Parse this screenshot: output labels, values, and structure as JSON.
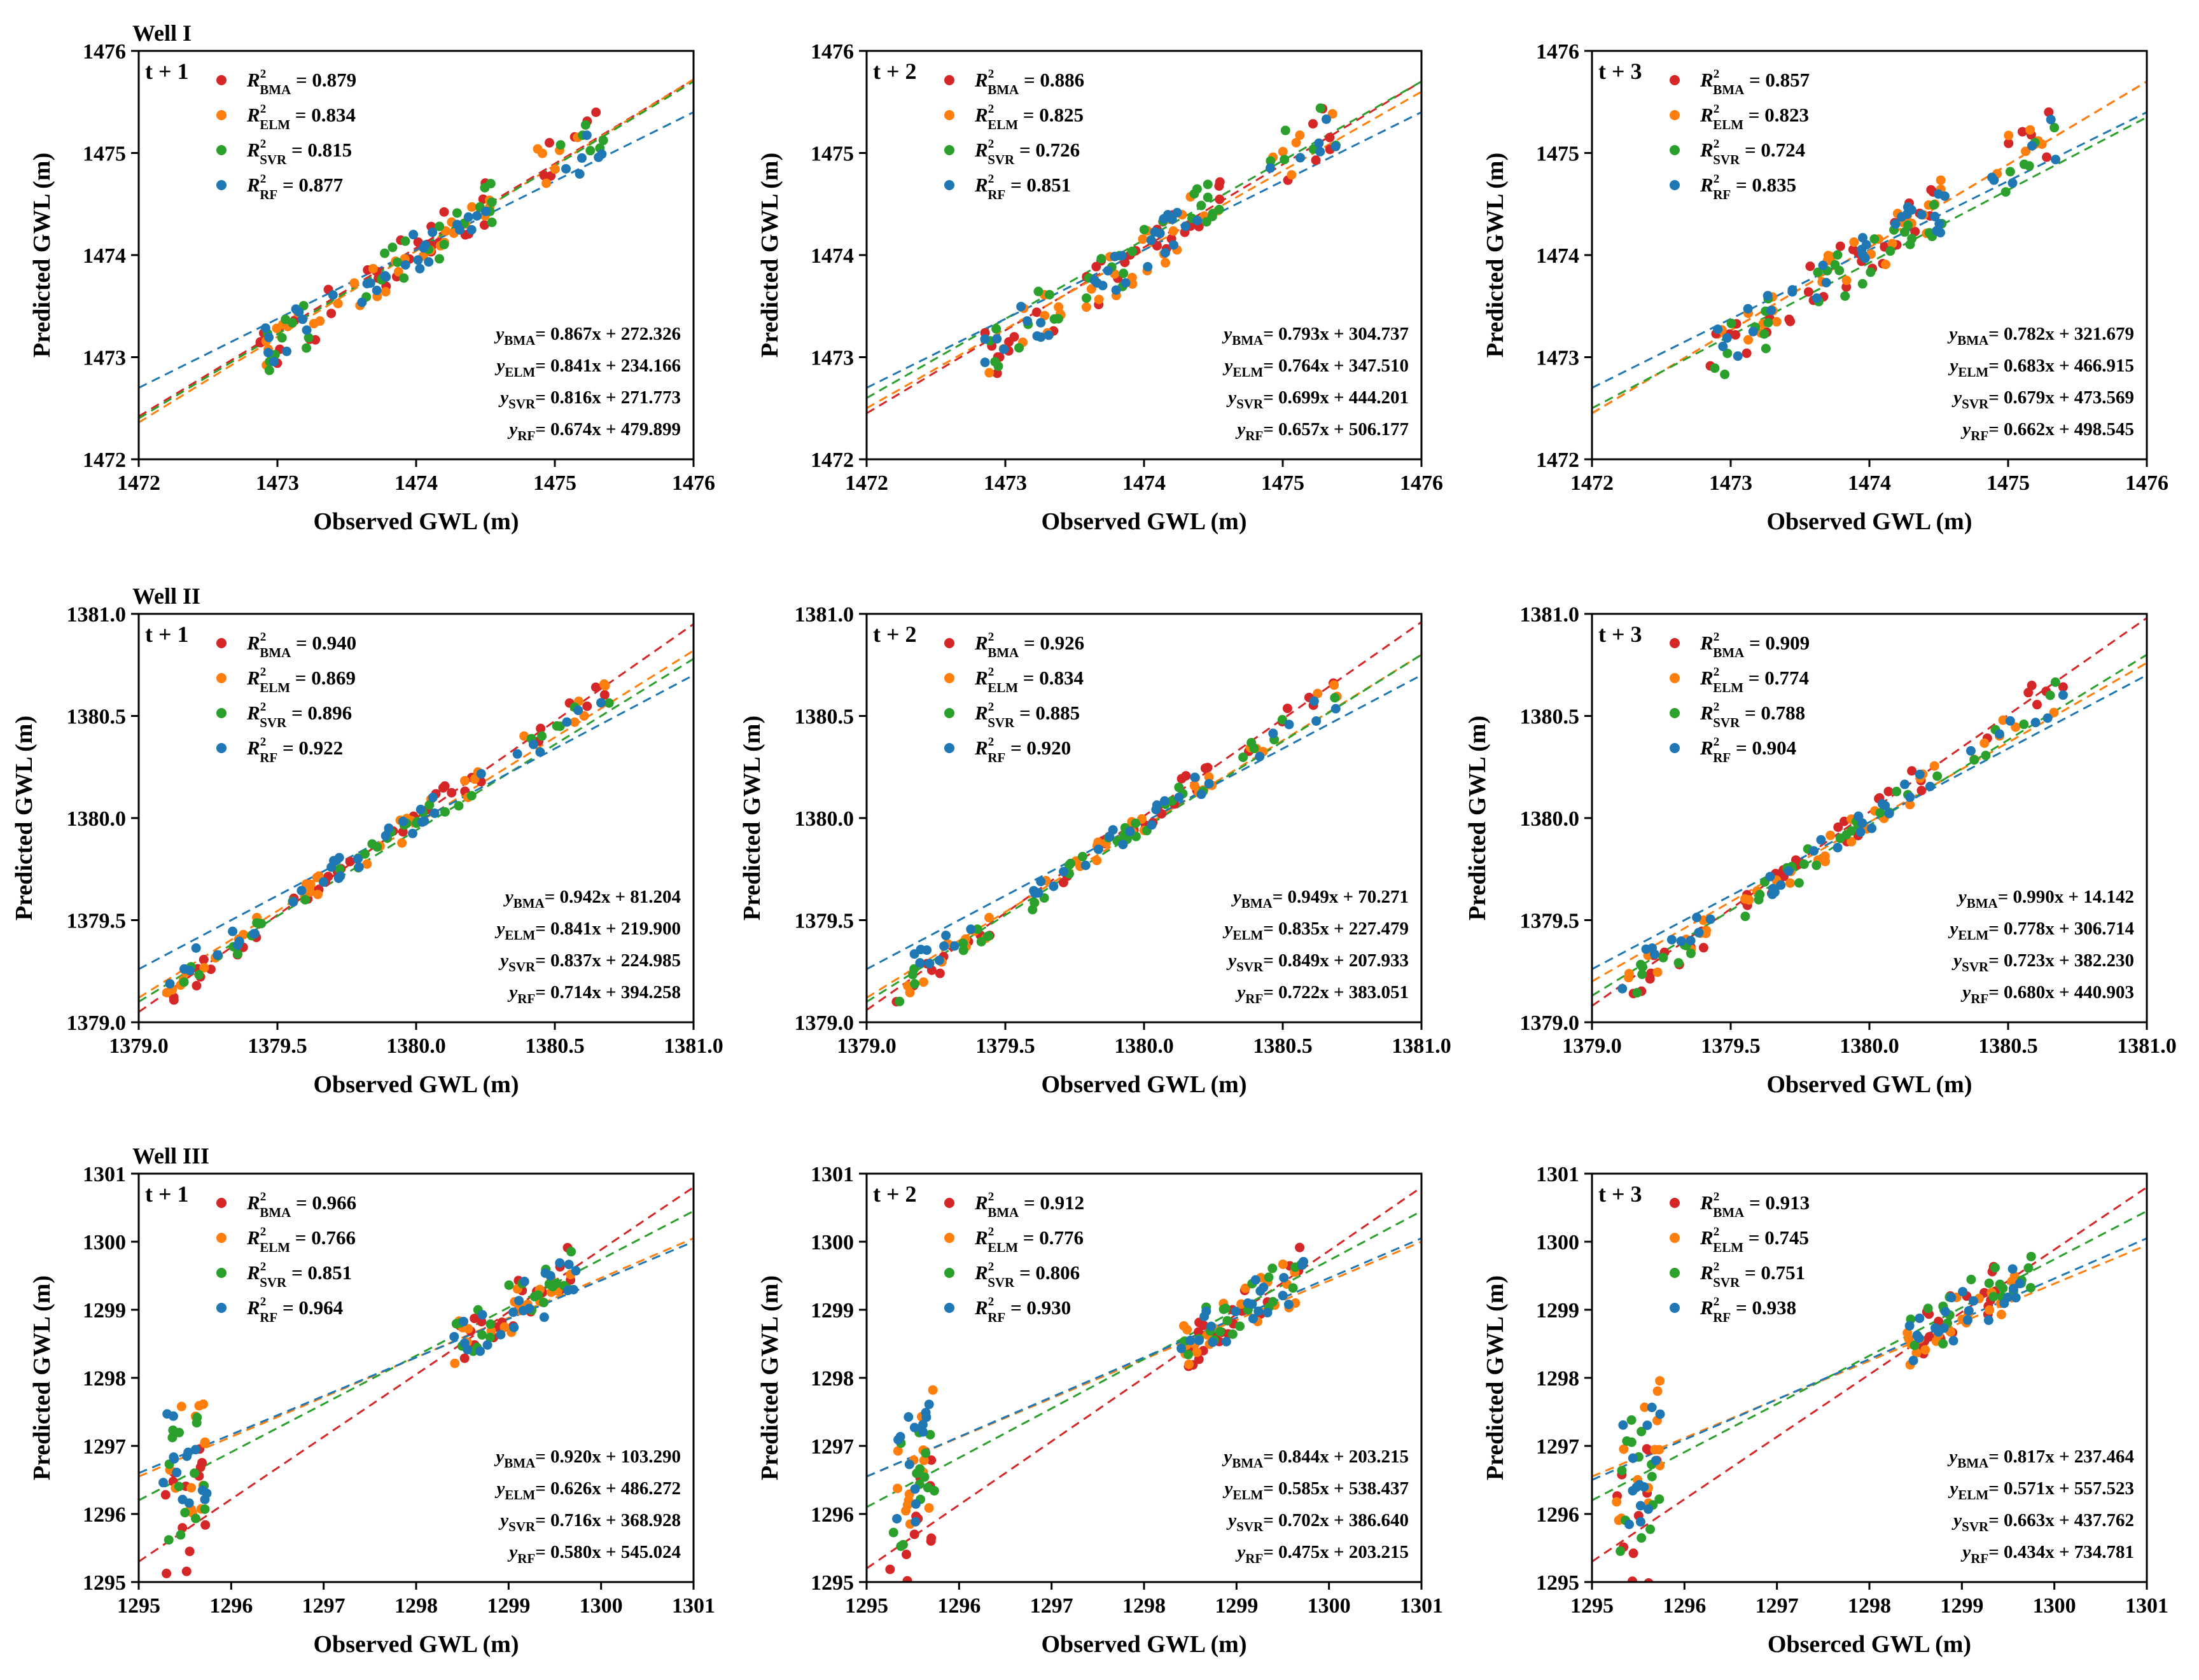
{
  "figure": {
    "ylabel": "Predicted GWL (m)",
    "models": [
      {
        "key": "BMA",
        "name": "BMA",
        "color": "#d62728"
      },
      {
        "key": "ELM",
        "name": "ELM",
        "color": "#ff7f0e"
      },
      {
        "key": "SVR",
        "name": "SVR",
        "color": "#2ca02c"
      },
      {
        "key": "RF",
        "name": "RF",
        "color": "#1f77b4"
      }
    ]
  },
  "chart_data": [
    {
      "type": "scatter",
      "well": "Well I",
      "title": "t + 1",
      "xlabel": "Observed GWL (m)",
      "ylabel": "Predicted GWL (m)",
      "xlim": [
        1472,
        1476
      ],
      "ylim": [
        1472,
        1476
      ],
      "xticks": [
        "1472",
        "1473",
        "1474",
        "1475",
        "1476"
      ],
      "yticks": [
        "1472",
        "1473",
        "1474",
        "1475",
        "1476"
      ],
      "r2": {
        "BMA": "0.879",
        "ELM": "0.834",
        "SVR": "0.815",
        "RF": "0.877"
      },
      "fits": {
        "BMA": {
          "slope": 0.867,
          "intercept": 272.326
        },
        "ELM": {
          "slope": 0.841,
          "intercept": 234.166
        },
        "SVR": {
          "slope": 0.816,
          "intercept": 271.773
        },
        "RF": {
          "slope": 0.674,
          "intercept": 479.899
        }
      },
      "fit_lines": {
        "BMA": [
          1472.42,
          1475.72
        ],
        "ELM": [
          1472.36,
          1475.72
        ],
        "SVR": [
          1472.4,
          1475.7
        ],
        "RF": [
          1472.7,
          1475.4
        ]
      },
      "equations": {
        "BMA": "= 0.867x + 272.326",
        "ELM": "= 0.841x + 234.166",
        "SVR": "= 0.816x + 271.773",
        "RF": "= 0.674x + 479.899"
      },
      "cluster": {
        "ranges": [
          [
            1472.85,
            1473.45
          ],
          [
            1473.55,
            1474.55
          ],
          [
            1474.85,
            1475.4
          ]
        ],
        "scatter": 0.22
      }
    },
    {
      "type": "scatter",
      "well": "",
      "title": "t + 2",
      "xlabel": "Observed GWL (m)",
      "ylabel": "Predicted GWL (m)",
      "xlim": [
        1472,
        1476
      ],
      "ylim": [
        1472,
        1476
      ],
      "xticks": [
        "1472",
        "1473",
        "1474",
        "1475",
        "1476"
      ],
      "yticks": [
        "1472",
        "1473",
        "1474",
        "1475",
        "1476"
      ],
      "r2": {
        "BMA": "0.886",
        "ELM": "0.825",
        "SVR": "0.726",
        "RF": "0.851"
      },
      "fits": {
        "BMA": {
          "slope": 0.793,
          "intercept": 304.737
        },
        "ELM": {
          "slope": 0.764,
          "intercept": 347.51
        },
        "SVR": {
          "slope": 0.699,
          "intercept": 444.201
        },
        "RF": {
          "slope": 0.657,
          "intercept": 506.177
        }
      },
      "fit_lines": {
        "BMA": [
          1472.45,
          1475.7
        ],
        "ELM": [
          1472.5,
          1475.6
        ],
        "SVR": [
          1472.6,
          1475.7
        ],
        "RF": [
          1472.7,
          1475.4
        ]
      },
      "equations": {
        "BMA": "= 0.793x + 304.737",
        "ELM": "= 0.764x + 347.510",
        "SVR": "= 0.699x + 444.201",
        "RF": "= 0.657x + 506.177"
      },
      "cluster": {
        "ranges": [
          [
            1472.85,
            1473.45
          ],
          [
            1473.55,
            1474.55
          ],
          [
            1474.85,
            1475.4
          ]
        ],
        "scatter": 0.25
      }
    },
    {
      "type": "scatter",
      "well": "",
      "title": "t + 3",
      "xlabel": "Observed GWL (m)",
      "ylabel": "Predicted GWL (m)",
      "xlim": [
        1472,
        1476
      ],
      "ylim": [
        1472,
        1476
      ],
      "xticks": [
        "1472",
        "1473",
        "1474",
        "1475",
        "1476"
      ],
      "yticks": [
        "1472",
        "1473",
        "1474",
        "1475",
        "1476"
      ],
      "r2": {
        "BMA": "0.857",
        "ELM": "0.823",
        "SVR": "0.724",
        "RF": "0.835"
      },
      "fits": {
        "BMA": {
          "slope": 0.782,
          "intercept": 321.679
        },
        "ELM": {
          "slope": 0.683,
          "intercept": 466.915
        },
        "SVR": {
          "slope": 0.679,
          "intercept": 473.569
        },
        "RF": {
          "slope": 0.662,
          "intercept": 498.545
        }
      },
      "fit_lines": {
        "BMA": [
          1472.45,
          1475.7
        ],
        "ELM": [
          1472.45,
          1475.7
        ],
        "SVR": [
          1472.5,
          1475.35
        ],
        "RF": [
          1472.7,
          1475.4
        ]
      },
      "equations": {
        "BMA": "= 0.782x + 321.679",
        "ELM": "= 0.683x + 466.915",
        "SVR": "= 0.679x + 473.569",
        "RF": "= 0.662x + 498.545"
      },
      "cluster": {
        "ranges": [
          [
            1472.85,
            1473.45
          ],
          [
            1473.55,
            1474.55
          ],
          [
            1474.85,
            1475.4
          ]
        ],
        "scatter": 0.24
      }
    },
    {
      "type": "scatter",
      "well": "Well II",
      "title": "t + 1",
      "xlabel": "Observed GWL (m)",
      "ylabel": "Predicted GWL (m)",
      "xlim": [
        1379.0,
        1381.0
      ],
      "ylim": [
        1379.0,
        1381.0
      ],
      "xticks": [
        "1379.0",
        "1379.5",
        "1380.0",
        "1380.5",
        "1381.0"
      ],
      "yticks": [
        "1379.0",
        "1379.5",
        "1380.0",
        "1380.5",
        "1381.0"
      ],
      "r2": {
        "BMA": "0.940",
        "ELM": "0.869",
        "SVR": "0.896",
        "RF": "0.922"
      },
      "fits": {
        "BMA": {
          "slope": 0.942,
          "intercept": 81.204
        },
        "ELM": {
          "slope": 0.841,
          "intercept": 219.9
        },
        "SVR": {
          "slope": 0.837,
          "intercept": 224.985
        },
        "RF": {
          "slope": 0.714,
          "intercept": 394.258
        }
      },
      "fit_lines": {
        "BMA": [
          1379.05,
          1380.95
        ],
        "ELM": [
          1379.12,
          1380.82
        ],
        "SVR": [
          1379.1,
          1380.78
        ],
        "RF": [
          1379.26,
          1380.7
        ]
      },
      "equations": {
        "BMA": "= 0.942x + 81.204",
        "ELM": "= 0.841x + 219.900",
        "SVR": "= 0.837x + 224.985",
        "RF": "= 0.714x + 394.258"
      },
      "cluster": {
        "ranges": [
          [
            1379.1,
            1379.45
          ],
          [
            1379.55,
            1380.25
          ],
          [
            1380.35,
            1380.7
          ]
        ],
        "scatter": 0.06
      }
    },
    {
      "type": "scatter",
      "well": "",
      "title": "t + 2",
      "xlabel": "Observed GWL (m)",
      "ylabel": "Predicted GWL (m)",
      "xlim": [
        1379.0,
        1381.0
      ],
      "ylim": [
        1379.0,
        1381.0
      ],
      "xticks": [
        "1379.0",
        "1379.5",
        "1380.0",
        "1380.5",
        "1381.0"
      ],
      "yticks": [
        "1379.0",
        "1379.5",
        "1380.0",
        "1380.5",
        "1381.0"
      ],
      "r2": {
        "BMA": "0.926",
        "ELM": "0.834",
        "SVR": "0.885",
        "RF": "0.920"
      },
      "fits": {
        "BMA": {
          "slope": 0.949,
          "intercept": 70.271
        },
        "ELM": {
          "slope": 0.835,
          "intercept": 227.479
        },
        "SVR": {
          "slope": 0.849,
          "intercept": 207.933
        },
        "RF": {
          "slope": 0.722,
          "intercept": 383.051
        }
      },
      "fit_lines": {
        "BMA": [
          1379.06,
          1380.96
        ],
        "ELM": [
          1379.12,
          1380.8
        ],
        "SVR": [
          1379.1,
          1380.8
        ],
        "RF": [
          1379.26,
          1380.7
        ]
      },
      "equations": {
        "BMA": "= 0.949x + 70.271",
        "ELM": "= 0.835x + 227.479",
        "SVR": "= 0.849x + 207.933",
        "RF": "= 0.722x + 383.051"
      },
      "cluster": {
        "ranges": [
          [
            1379.1,
            1379.45
          ],
          [
            1379.55,
            1380.25
          ],
          [
            1380.35,
            1380.7
          ]
        ],
        "scatter": 0.06
      }
    },
    {
      "type": "scatter",
      "well": "",
      "title": "t + 3",
      "xlabel": "Observed GWL (m)",
      "ylabel": "Predicted GWL (m)",
      "xlim": [
        1379.0,
        1381.0
      ],
      "ylim": [
        1379.0,
        1381.0
      ],
      "xticks": [
        "1379.0",
        "1379.5",
        "1380.0",
        "1380.5",
        "1381.0"
      ],
      "yticks": [
        "1379.0",
        "1379.5",
        "1380.0",
        "1380.5",
        "1381.0"
      ],
      "r2": {
        "BMA": "0.909",
        "ELM": "0.774",
        "SVR": "0.788",
        "RF": "0.904"
      },
      "fits": {
        "BMA": {
          "slope": 0.99,
          "intercept": 14.142
        },
        "ELM": {
          "slope": 0.778,
          "intercept": 306.714
        },
        "SVR": {
          "slope": 0.723,
          "intercept": 382.23
        },
        "RF": {
          "slope": 0.68,
          "intercept": 440.903
        }
      },
      "fit_lines": {
        "BMA": [
          1379.08,
          1380.98
        ],
        "ELM": [
          1379.2,
          1380.76
        ],
        "SVR": [
          1379.13,
          1380.8
        ],
        "RF": [
          1379.26,
          1380.7
        ]
      },
      "equations": {
        "BMA": "= 0.990x + 14.142",
        "ELM": "= 0.778x + 306.714",
        "SVR": "= 0.723x + 382.230",
        "RF": "= 0.680x + 440.903"
      },
      "cluster": {
        "ranges": [
          [
            1379.1,
            1379.45
          ],
          [
            1379.55,
            1380.25
          ],
          [
            1380.35,
            1380.7
          ]
        ],
        "scatter": 0.07
      }
    },
    {
      "type": "scatter",
      "well": "Well III",
      "title": "t + 1",
      "xlabel": "Observed GWL (m)",
      "ylabel": "Predicted GWL (m)",
      "xlim": [
        1295,
        1301
      ],
      "ylim": [
        1295,
        1301
      ],
      "xticks": [
        "1295",
        "1296",
        "1297",
        "1298",
        "1299",
        "1300",
        "1301"
      ],
      "yticks": [
        "1295",
        "1296",
        "1297",
        "1298",
        "1299",
        "1300",
        "1301"
      ],
      "r2": {
        "BMA": "0.966",
        "ELM": "0.766",
        "SVR": "0.851",
        "RF": "0.964"
      },
      "fits": {
        "BMA": {
          "slope": 0.92,
          "intercept": 103.29
        },
        "ELM": {
          "slope": 0.626,
          "intercept": 486.272
        },
        "SVR": {
          "slope": 0.716,
          "intercept": 368.928
        },
        "RF": {
          "slope": 0.58,
          "intercept": 545.024
        }
      },
      "fit_lines": {
        "BMA": [
          1295.3,
          1300.8
        ],
        "ELM": [
          1296.55,
          1300.05
        ],
        "SVR": [
          1296.2,
          1300.45
        ],
        "RF": [
          1296.6,
          1300.0
        ]
      },
      "equations": {
        "BMA": "= 0.920x + 103.290",
        "ELM": "= 0.626x + 486.272",
        "SVR": "= 0.716x + 368.928",
        "RF": "= 0.580x + 545.024"
      },
      "cluster": {
        "ranges": [
          [
            1295.25,
            1295.75
          ],
          [
            1298.4,
            1299.75
          ]
        ],
        "scatter": 0.9
      }
    },
    {
      "type": "scatter",
      "well": "",
      "title": "t + 2",
      "xlabel": "Observed GWL (m)",
      "ylabel": "Predicted GWL (m)",
      "xlim": [
        1295,
        1301
      ],
      "ylim": [
        1295,
        1301
      ],
      "xticks": [
        "1295",
        "1296",
        "1297",
        "1298",
        "1299",
        "1300",
        "1301"
      ],
      "yticks": [
        "1295",
        "1296",
        "1297",
        "1298",
        "1299",
        "1300",
        "1301"
      ],
      "r2": {
        "BMA": "0.912",
        "ELM": "0.776",
        "SVR": "0.806",
        "RF": "0.930"
      },
      "fits": {
        "BMA": {
          "slope": 0.844,
          "intercept": 203.215
        },
        "ELM": {
          "slope": 0.585,
          "intercept": 538.437
        },
        "SVR": {
          "slope": 0.702,
          "intercept": 386.64
        },
        "RF": {
          "slope": 0.475,
          "intercept": 203.215
        }
      },
      "fit_lines": {
        "BMA": [
          1295.2,
          1300.8
        ],
        "ELM": [
          1296.55,
          1300.0
        ],
        "SVR": [
          1296.1,
          1300.45
        ],
        "RF": [
          1296.55,
          1300.05
        ]
      },
      "equations": {
        "BMA": "= 0.844x + 203.215",
        "ELM": "= 0.585x + 538.437",
        "SVR": "= 0.702x + 386.640",
        "RF": "= 0.475x + 203.215"
      },
      "cluster": {
        "ranges": [
          [
            1295.25,
            1295.75
          ],
          [
            1298.4,
            1299.75
          ]
        ],
        "scatter": 1.0
      }
    },
    {
      "type": "scatter",
      "well": "",
      "title": "t + 3",
      "xlabel": "Obserced GWL (m)",
      "ylabel": "Predicted GWL (m)",
      "xlim": [
        1295,
        1301
      ],
      "ylim": [
        1295,
        1301
      ],
      "xticks": [
        "1295",
        "1296",
        "1297",
        "1298",
        "1299",
        "1300",
        "1301"
      ],
      "yticks": [
        "1295",
        "1296",
        "1297",
        "1298",
        "1299",
        "1300",
        "1301"
      ],
      "r2": {
        "BMA": "0.913",
        "ELM": "0.745",
        "SVR": "0.751",
        "RF": "0.938"
      },
      "fits": {
        "BMA": {
          "slope": 0.817,
          "intercept": 237.464
        },
        "ELM": {
          "slope": 0.571,
          "intercept": 557.523
        },
        "SVR": {
          "slope": 0.663,
          "intercept": 437.762
        },
        "RF": {
          "slope": 0.434,
          "intercept": 734.781
        }
      },
      "fit_lines": {
        "BMA": [
          1295.3,
          1300.8
        ],
        "ELM": [
          1296.55,
          1299.95
        ],
        "SVR": [
          1296.2,
          1300.45
        ],
        "RF": [
          1296.5,
          1300.05
        ]
      },
      "equations": {
        "BMA": "= 0.817x + 237.464",
        "ELM": "= 0.571x + 557.523",
        "SVR": "= 0.663x + 437.762",
        "RF": "= 0.434x + 734.781"
      },
      "cluster": {
        "ranges": [
          [
            1295.25,
            1295.75
          ],
          [
            1298.4,
            1299.75
          ]
        ],
        "scatter": 1.0
      }
    }
  ]
}
